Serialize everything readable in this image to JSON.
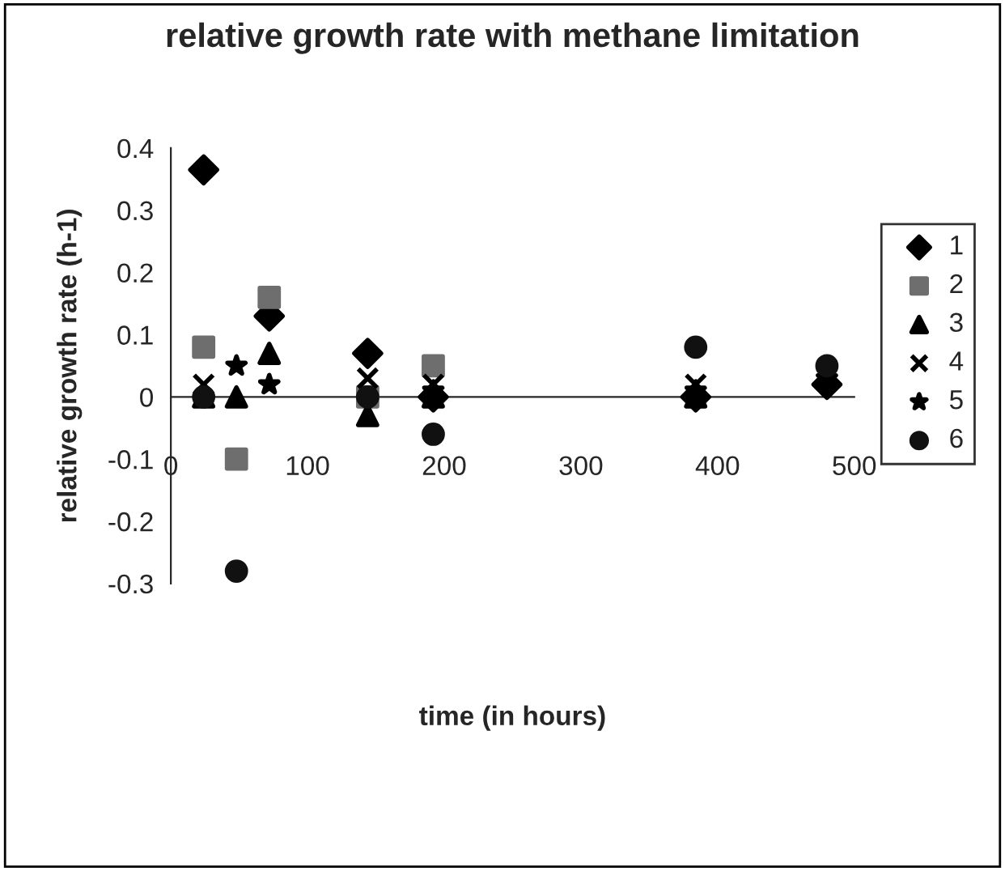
{
  "chart_data": {
    "type": "scatter",
    "title": "relative growth rate with methane limitation",
    "xlabel": "time (in hours)",
    "ylabel": "relative growth rate (h-1)",
    "x": [
      24,
      48,
      72,
      144,
      192,
      384,
      480
    ],
    "series": [
      {
        "name": "1",
        "color": "#000000",
        "marker": "diamond",
        "values": [
          0.365,
          null,
          0.13,
          0.07,
          0.0,
          0.0,
          0.02
        ]
      },
      {
        "name": "2",
        "color": "#6e6e6e",
        "marker": "square",
        "values": [
          0.08,
          -0.1,
          0.16,
          0.0,
          0.05,
          null,
          null
        ]
      },
      {
        "name": "3",
        "color": "#000000",
        "marker": "triangle",
        "values": [
          0.0,
          0.0,
          0.07,
          -0.03,
          0.0,
          0.0,
          null
        ]
      },
      {
        "name": "4",
        "color": "#000000",
        "marker": "cross",
        "values": [
          0.02,
          null,
          null,
          0.03,
          0.02,
          0.02,
          null
        ]
      },
      {
        "name": "5",
        "color": "#000000",
        "marker": "star",
        "values": [
          null,
          0.05,
          0.02,
          null,
          0.01,
          0.01,
          0.03
        ]
      },
      {
        "name": "6",
        "color": "#111111",
        "marker": "circle",
        "values": [
          0.0,
          -0.28,
          null,
          0.0,
          -0.06,
          0.08,
          0.05
        ]
      }
    ],
    "xlim": [
      0,
      500
    ],
    "xticks": [
      0,
      100,
      200,
      300,
      400,
      500
    ],
    "ylim": [
      -0.3,
      0.4
    ],
    "yticks": [
      -0.3,
      -0.2,
      -0.1,
      0,
      0.1,
      0.2,
      0.3,
      0.4
    ],
    "grid": false,
    "legend": "right"
  }
}
